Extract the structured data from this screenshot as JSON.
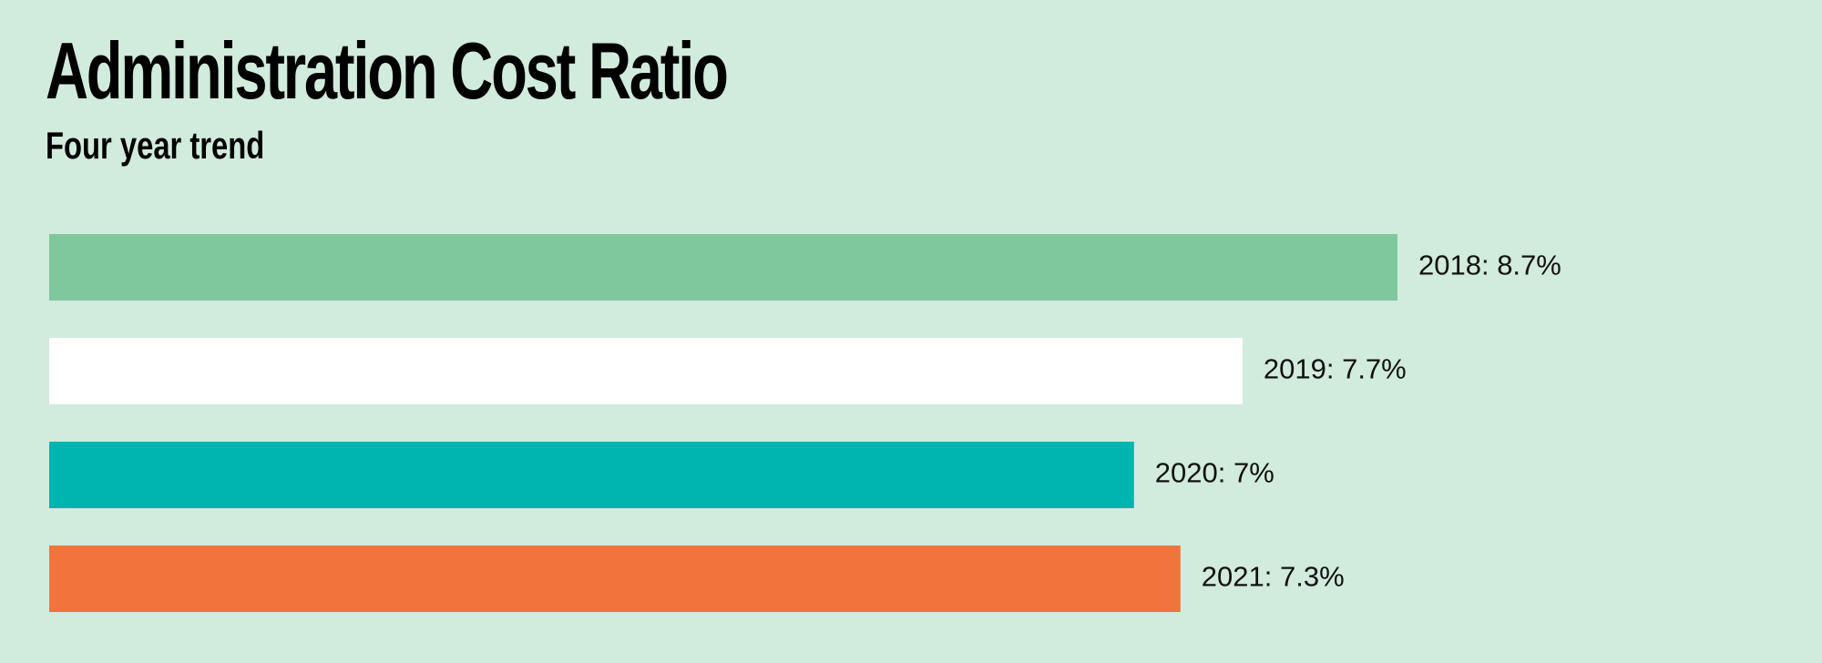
{
  "header": {
    "title": "Administration Cost Ratio",
    "subtitle": "Four year trend"
  },
  "chart_data": {
    "type": "bar",
    "orientation": "horizontal",
    "title": "Administration Cost Ratio",
    "subtitle": "Four year trend",
    "categories": [
      "2018",
      "2019",
      "2020",
      "2021"
    ],
    "values": [
      8.7,
      7.7,
      7,
      7.3
    ],
    "data_labels": [
      "2018: 8.7%",
      "2019: 7.7%",
      "2020: 7%",
      "2021: 7.3%"
    ],
    "colors": [
      "#7fc89d",
      "#ffffff",
      "#00b4b0",
      "#f1743c"
    ],
    "grid": false,
    "legend": "none"
  }
}
